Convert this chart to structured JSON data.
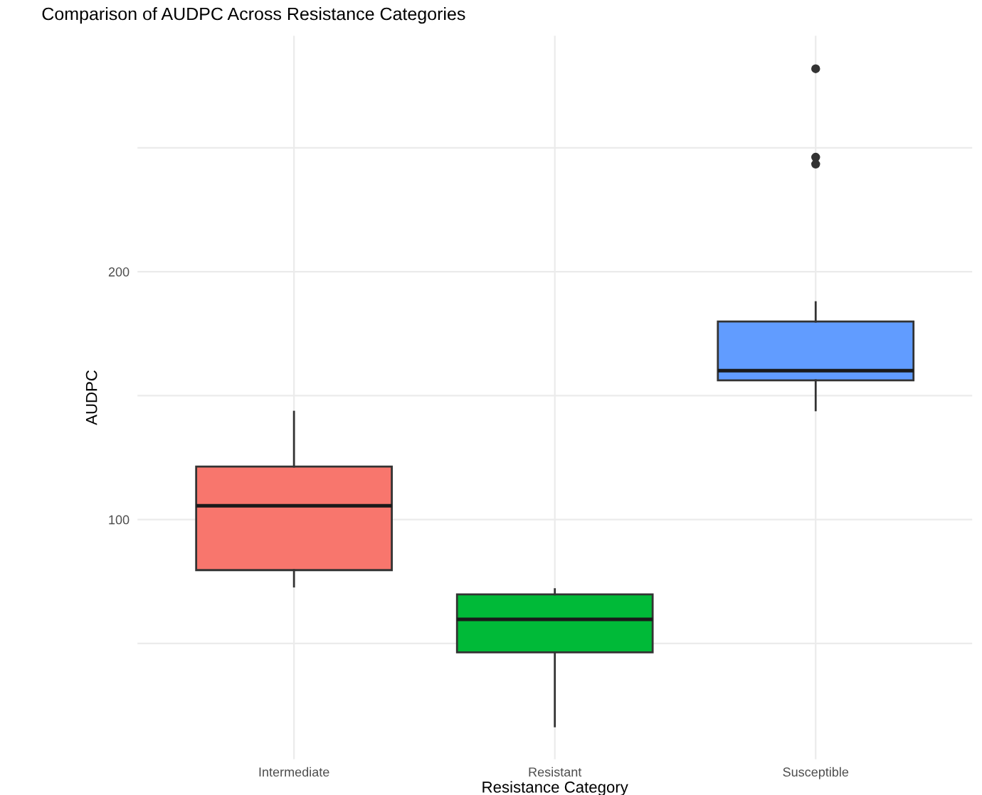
{
  "chart_data": {
    "type": "box",
    "title": "Comparison of AUDPC Across Resistance Categories",
    "xlabel": "Resistance Category",
    "ylabel": "AUDPC",
    "categories": [
      "Intermediate",
      "Resistant",
      "Susceptible"
    ],
    "colors": [
      "#f8766d",
      "#00ba38",
      "#619cff"
    ],
    "boxes": [
      {
        "low": 73,
        "q1": 79.6,
        "median": 105.6,
        "q3": 121.4,
        "high": 143.5
      },
      {
        "low": 16.6,
        "q1": 46.4,
        "median": 59.7,
        "q3": 69.8,
        "high": 71.9
      },
      {
        "low": 144.1,
        "q1": 156.2,
        "median": 160.1,
        "q3": 179.9,
        "high": 187.7,
        "outliers": [
          243.4,
          246.2,
          281.9
        ]
      }
    ],
    "ylim": [
      3.3,
      295.2
    ],
    "yticks": [
      {
        "value": 50,
        "label": null
      },
      100,
      {
        "value": 150,
        "label": null
      },
      200,
      {
        "value": 250,
        "label": null
      }
    ],
    "grid": true,
    "legend": false
  }
}
